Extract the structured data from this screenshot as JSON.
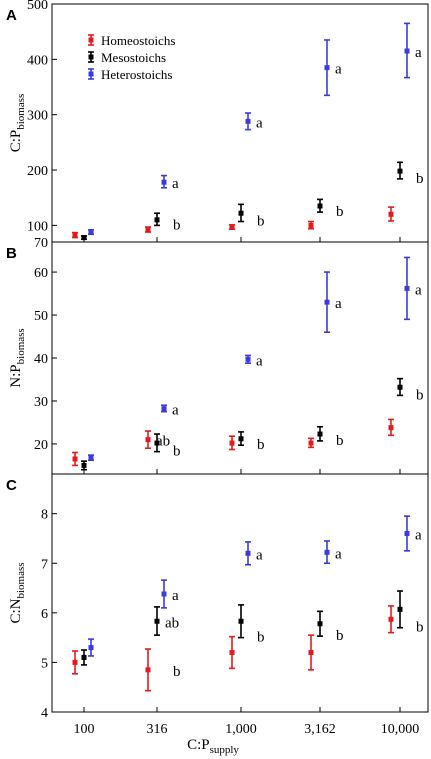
{
  "chart_data": {
    "type": "scatter",
    "x_axis": {
      "label_main": "C:P",
      "label_sub": "supply",
      "categories": [
        "100",
        "316",
        "1,000",
        "3,162",
        "10,000"
      ]
    },
    "legend": {
      "placement": "top-left of panel A",
      "entries": [
        {
          "name": "Homeostoichs",
          "color": "#e41a1c"
        },
        {
          "name": "Mesostoichs",
          "color": "#000000"
        },
        {
          "name": "Heterostoichs",
          "color": "#3a3adf"
        }
      ]
    },
    "panels": [
      {
        "letter": "A",
        "ylabel_main": "C:P",
        "ylabel_sub": "biomass",
        "ylim": [
          70,
          500
        ],
        "yticks": [
          70,
          100,
          200,
          300,
          400,
          500
        ],
        "series": [
          {
            "name": "Homeostoichs",
            "color": "#e41a1c",
            "points": [
              {
                "x": "100",
                "y": 82,
                "lo": 78,
                "hi": 87
              },
              {
                "x": "316",
                "y": 92,
                "lo": 88,
                "hi": 97
              },
              {
                "x": "1,000",
                "y": 97,
                "lo": 93,
                "hi": 101
              },
              {
                "x": "3,162",
                "y": 100,
                "lo": 94,
                "hi": 107
              },
              {
                "x": "10,000",
                "y": 120,
                "lo": 108,
                "hi": 133
              }
            ]
          },
          {
            "name": "Mesostoichs",
            "color": "#000000",
            "points": [
              {
                "x": "100",
                "y": 78,
                "lo": 75,
                "hi": 81
              },
              {
                "x": "316",
                "y": 110,
                "lo": 100,
                "hi": 122
              },
              {
                "x": "1,000",
                "y": 122,
                "lo": 107,
                "hi": 138
              },
              {
                "x": "3,162",
                "y": 135,
                "lo": 124,
                "hi": 147
              },
              {
                "x": "10,000",
                "y": 198,
                "lo": 184,
                "hi": 214
              }
            ]
          },
          {
            "name": "Heterostoichs",
            "color": "#3a3adf",
            "points": [
              {
                "x": "100",
                "y": 88,
                "lo": 84,
                "hi": 92
              },
              {
                "x": "316",
                "y": 178,
                "lo": 168,
                "hi": 190
              },
              {
                "x": "1,000",
                "y": 288,
                "lo": 273,
                "hi": 303
              },
              {
                "x": "3,162",
                "y": 385,
                "lo": 335,
                "hi": 435
              },
              {
                "x": "10,000",
                "y": 415,
                "lo": 367,
                "hi": 465
              }
            ]
          }
        ],
        "annotations": [
          {
            "x": "316",
            "series": "Heterostoichs",
            "text": "a"
          },
          {
            "x": "316",
            "series": "Mesostoichs",
            "text": "b"
          },
          {
            "x": "1,000",
            "series": "Heterostoichs",
            "text": "a"
          },
          {
            "x": "1,000",
            "series": "Mesostoichs",
            "text": "b"
          },
          {
            "x": "3,162",
            "series": "Heterostoichs",
            "text": "a"
          },
          {
            "x": "3,162",
            "series": "Mesostoichs",
            "text": "b"
          },
          {
            "x": "10,000",
            "series": "Heterostoichs",
            "text": "a"
          },
          {
            "x": "10,000",
            "series": "Mesostoichs",
            "text": "b"
          }
        ]
      },
      {
        "letter": "B",
        "ylabel_main": "N:P",
        "ylabel_sub": "biomass",
        "ylim": [
          13,
          67
        ],
        "yticks": [
          20,
          30,
          40,
          50,
          60
        ],
        "series": [
          {
            "name": "Homeostoichs",
            "color": "#e41a1c",
            "points": [
              {
                "x": "100",
                "y": 16.5,
                "lo": 15.0,
                "hi": 18.0
              },
              {
                "x": "316",
                "y": 21.0,
                "lo": 19.0,
                "hi": 23.0
              },
              {
                "x": "1,000",
                "y": 20.2,
                "lo": 18.7,
                "hi": 21.8
              },
              {
                "x": "3,162",
                "y": 20.2,
                "lo": 19.2,
                "hi": 21.3
              },
              {
                "x": "10,000",
                "y": 23.8,
                "lo": 22.0,
                "hi": 25.7
              }
            ]
          },
          {
            "name": "Mesostoichs",
            "color": "#000000",
            "points": [
              {
                "x": "100",
                "y": 15.0,
                "lo": 14.0,
                "hi": 16.0
              },
              {
                "x": "316",
                "y": 20.2,
                "lo": 18.2,
                "hi": 22.3
              },
              {
                "x": "1,000",
                "y": 21.2,
                "lo": 19.7,
                "hi": 22.8
              },
              {
                "x": "3,162",
                "y": 22.3,
                "lo": 20.7,
                "hi": 24.0
              },
              {
                "x": "10,000",
                "y": 33.2,
                "lo": 31.3,
                "hi": 35.2
              }
            ]
          },
          {
            "name": "Heterostoichs",
            "color": "#3a3adf",
            "points": [
              {
                "x": "100",
                "y": 16.8,
                "lo": 16.2,
                "hi": 17.4
              },
              {
                "x": "316",
                "y": 28.2,
                "lo": 27.5,
                "hi": 29.0
              },
              {
                "x": "1,000",
                "y": 39.7,
                "lo": 38.8,
                "hi": 40.6
              },
              {
                "x": "3,162",
                "y": 53.0,
                "lo": 46.0,
                "hi": 60.0
              },
              {
                "x": "10,000",
                "y": 56.2,
                "lo": 49.0,
                "hi": 63.4
              }
            ]
          }
        ],
        "annotations": [
          {
            "x": "316",
            "series": "Heterostoichs",
            "text": "a"
          },
          {
            "x": "316",
            "series": "Homeostoichs",
            "text": "ab"
          },
          {
            "x": "316",
            "series": "Mesostoichs",
            "text": "b"
          },
          {
            "x": "1,000",
            "series": "Heterostoichs",
            "text": "a"
          },
          {
            "x": "1,000",
            "series": "Mesostoichs",
            "text": "b"
          },
          {
            "x": "3,162",
            "series": "Heterostoichs",
            "text": "a"
          },
          {
            "x": "3,162",
            "series": "Mesostoichs",
            "text": "b"
          },
          {
            "x": "10,000",
            "series": "Heterostoichs",
            "text": "a"
          },
          {
            "x": "10,000",
            "series": "Mesostoichs",
            "text": "b"
          }
        ]
      },
      {
        "letter": "C",
        "ylabel_main": "C:N",
        "ylabel_sub": "biomass",
        "ylim": [
          4,
          8.8
        ],
        "yticks": [
          4,
          5,
          6,
          7,
          8
        ],
        "series": [
          {
            "name": "Homeostoichs",
            "color": "#e41a1c",
            "points": [
              {
                "x": "100",
                "y": 5.0,
                "lo": 4.77,
                "hi": 5.23
              },
              {
                "x": "316",
                "y": 4.85,
                "lo": 4.43,
                "hi": 5.27
              },
              {
                "x": "1,000",
                "y": 5.2,
                "lo": 4.88,
                "hi": 5.52
              },
              {
                "x": "3,162",
                "y": 5.2,
                "lo": 4.85,
                "hi": 5.55
              },
              {
                "x": "10,000",
                "y": 5.87,
                "lo": 5.6,
                "hi": 6.14
              }
            ]
          },
          {
            "name": "Mesostoichs",
            "color": "#000000",
            "points": [
              {
                "x": "100",
                "y": 5.1,
                "lo": 4.95,
                "hi": 5.25
              },
              {
                "x": "316",
                "y": 5.83,
                "lo": 5.55,
                "hi": 6.12
              },
              {
                "x": "1,000",
                "y": 5.83,
                "lo": 5.5,
                "hi": 6.16
              },
              {
                "x": "3,162",
                "y": 5.78,
                "lo": 5.53,
                "hi": 6.03
              },
              {
                "x": "10,000",
                "y": 6.07,
                "lo": 5.7,
                "hi": 6.44
              }
            ]
          },
          {
            "name": "Heterostoichs",
            "color": "#3a3adf",
            "points": [
              {
                "x": "100",
                "y": 5.3,
                "lo": 5.13,
                "hi": 5.47
              },
              {
                "x": "316",
                "y": 6.38,
                "lo": 6.1,
                "hi": 6.66
              },
              {
                "x": "1,000",
                "y": 7.2,
                "lo": 6.97,
                "hi": 7.43
              },
              {
                "x": "3,162",
                "y": 7.22,
                "lo": 7.0,
                "hi": 7.45
              },
              {
                "x": "10,000",
                "y": 7.6,
                "lo": 7.25,
                "hi": 7.95
              }
            ]
          }
        ],
        "annotations": [
          {
            "x": "316",
            "series": "Heterostoichs",
            "text": "a"
          },
          {
            "x": "316",
            "series": "Mesostoichs",
            "text": "ab"
          },
          {
            "x": "316",
            "series": "Homeostoichs",
            "text": "b"
          },
          {
            "x": "1,000",
            "series": "Heterostoichs",
            "text": "a"
          },
          {
            "x": "1,000",
            "series": "Mesostoichs",
            "text": "b"
          },
          {
            "x": "3,162",
            "series": "Heterostoichs",
            "text": "a"
          },
          {
            "x": "3,162",
            "series": "Mesostoichs",
            "text": "b"
          },
          {
            "x": "10,000",
            "series": "Heterostoichs",
            "text": "a"
          },
          {
            "x": "10,000",
            "series": "Mesostoichs",
            "text": "b"
          }
        ]
      }
    ]
  }
}
